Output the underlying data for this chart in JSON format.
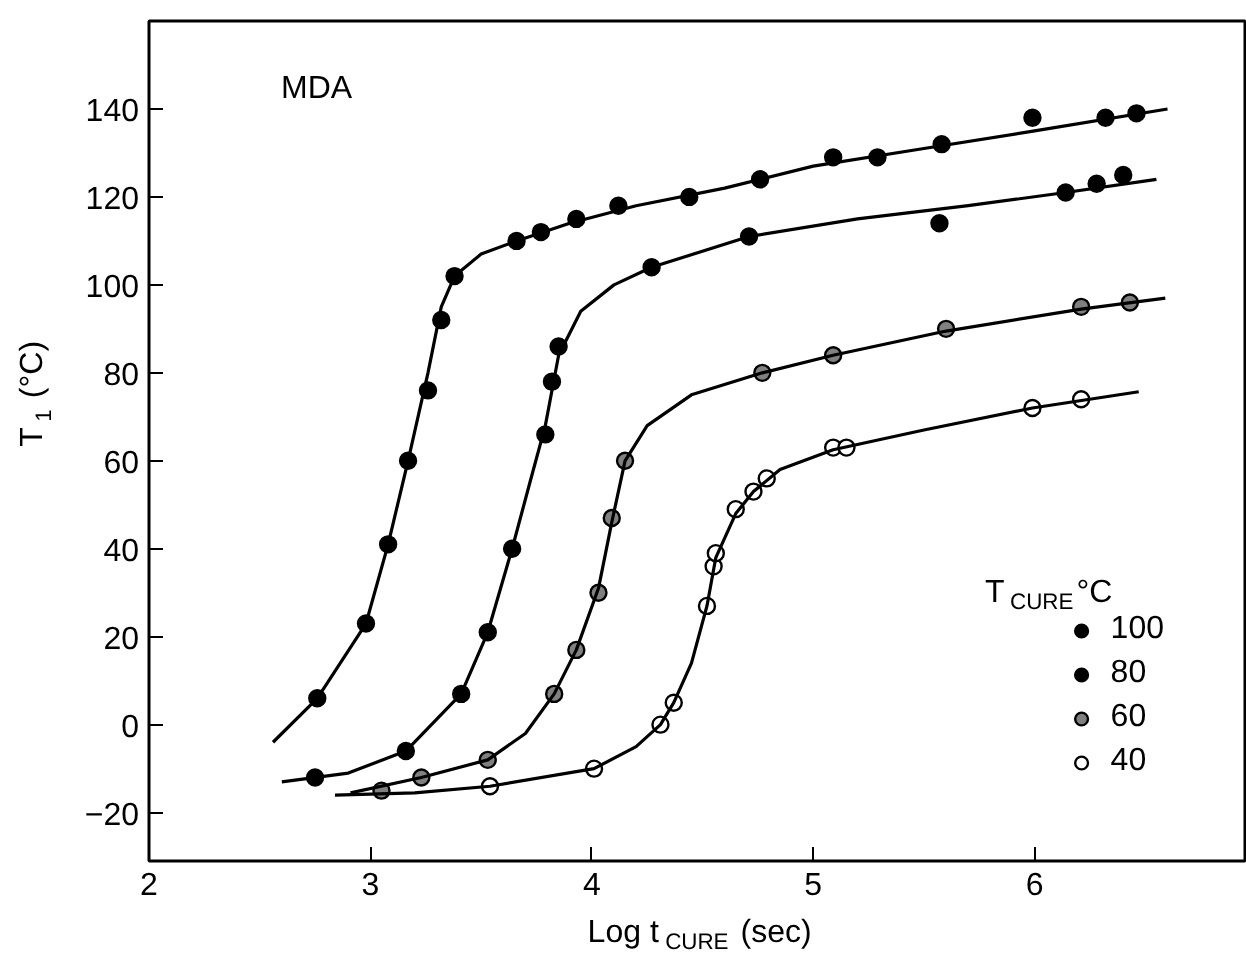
{
  "chart_data": {
    "type": "scatter",
    "xlabel": "Log t$_{CURE}$ (sec)",
    "ylabel": "T$_{1}$ (°C)",
    "legend_title": "T$_{CURE}$°C",
    "annotations": [
      "MDA"
    ],
    "xlim": [
      2,
      6.95
    ],
    "ylim": [
      -31,
      160
    ],
    "xticks": [
      2,
      3,
      4,
      5,
      6
    ],
    "yticks": [
      -20,
      0,
      20,
      40,
      60,
      80,
      100,
      120,
      140
    ],
    "grid": false,
    "legend": "bottom right",
    "marker": "circle",
    "series": [
      {
        "name": "100",
        "color": "#000000",
        "x": [
          2.76,
          2.98,
          3.08,
          3.17,
          3.26,
          3.32,
          3.38,
          3.66,
          3.77,
          3.93,
          4.12,
          4.44,
          4.76,
          5.09,
          5.29,
          5.58,
          5.99,
          6.32,
          6.46
        ],
        "values": [
          6,
          23,
          41,
          60,
          76,
          92,
          102,
          110,
          112,
          115,
          118,
          120,
          124,
          129,
          129,
          132,
          138,
          138,
          139
        ]
      },
      {
        "name": "80",
        "color": "#000000",
        "x": [
          2.75,
          3.16,
          3.41,
          3.53,
          3.64,
          3.79,
          3.82,
          3.85,
          4.27,
          4.71,
          5.57,
          6.14,
          6.28,
          6.4
        ],
        "values": [
          -12,
          -6,
          7,
          21,
          40,
          66,
          78,
          86,
          104,
          111,
          114,
          121,
          123,
          125
        ]
      },
      {
        "name": "60",
        "color": "#808080",
        "x": [
          3.05,
          3.23,
          3.53,
          3.83,
          3.93,
          4.03,
          4.09,
          4.15,
          4.77,
          5.09,
          5.6,
          6.21,
          6.43
        ],
        "values": [
          -15,
          -12,
          -8,
          7,
          17,
          30,
          47,
          60,
          80,
          84,
          90,
          95,
          96
        ]
      },
      {
        "name": "40",
        "color": "#ffffff",
        "x": [
          3.54,
          4.01,
          4.31,
          4.37,
          4.52,
          4.55,
          4.56,
          4.65,
          4.73,
          4.79,
          5.09,
          5.15,
          5.99,
          6.21
        ],
        "values": [
          -14,
          -10,
          0,
          5,
          27,
          36,
          39,
          49,
          53,
          56,
          63,
          63,
          72,
          74
        ]
      },
      {
        "type": "line",
        "marker": "none",
        "color": "#000000",
        "x": [
          2.56,
          2.76,
          2.98,
          3.08,
          3.17,
          3.26,
          3.32,
          3.38,
          3.5,
          3.66,
          3.9,
          4.2,
          4.6,
          5.0,
          5.5,
          6.0,
          6.6
        ],
        "values": [
          -4,
          6,
          23,
          41,
          60,
          80,
          95,
          102,
          107,
          110,
          114,
          118,
          122,
          127,
          131,
          135,
          140
        ]
      },
      {
        "type": "line",
        "marker": "none",
        "color": "#000000",
        "x": [
          2.6,
          2.9,
          3.16,
          3.41,
          3.53,
          3.64,
          3.72,
          3.79,
          3.85,
          3.95,
          4.1,
          4.27,
          4.71,
          5.2,
          5.7,
          6.14,
          6.55
        ],
        "values": [
          -13,
          -11,
          -6,
          7,
          21,
          40,
          55,
          68,
          84,
          94,
          100,
          104,
          111,
          115,
          118,
          121,
          124
        ]
      },
      {
        "type": "line",
        "marker": "none",
        "color": "#000000",
        "x": [
          2.91,
          3.23,
          3.53,
          3.7,
          3.83,
          3.93,
          4.03,
          4.09,
          4.15,
          4.25,
          4.45,
          4.77,
          5.09,
          5.6,
          6.21,
          6.59
        ],
        "values": [
          -15.5,
          -12,
          -8,
          -2,
          7,
          17,
          31,
          46,
          60,
          68,
          75,
          80,
          84,
          89.5,
          94.5,
          97
        ]
      },
      {
        "type": "line",
        "marker": "none",
        "color": "#000000",
        "x": [
          2.84,
          3.2,
          3.54,
          4.01,
          4.2,
          4.31,
          4.37,
          4.45,
          4.52,
          4.56,
          4.65,
          4.73,
          4.85,
          5.09,
          5.5,
          5.99,
          6.47
        ],
        "values": [
          -16,
          -15.5,
          -14,
          -10,
          -5,
          0,
          5,
          14,
          27,
          38,
          48,
          53,
          58,
          62.5,
          67,
          72,
          75.7
        ]
      }
    ]
  }
}
